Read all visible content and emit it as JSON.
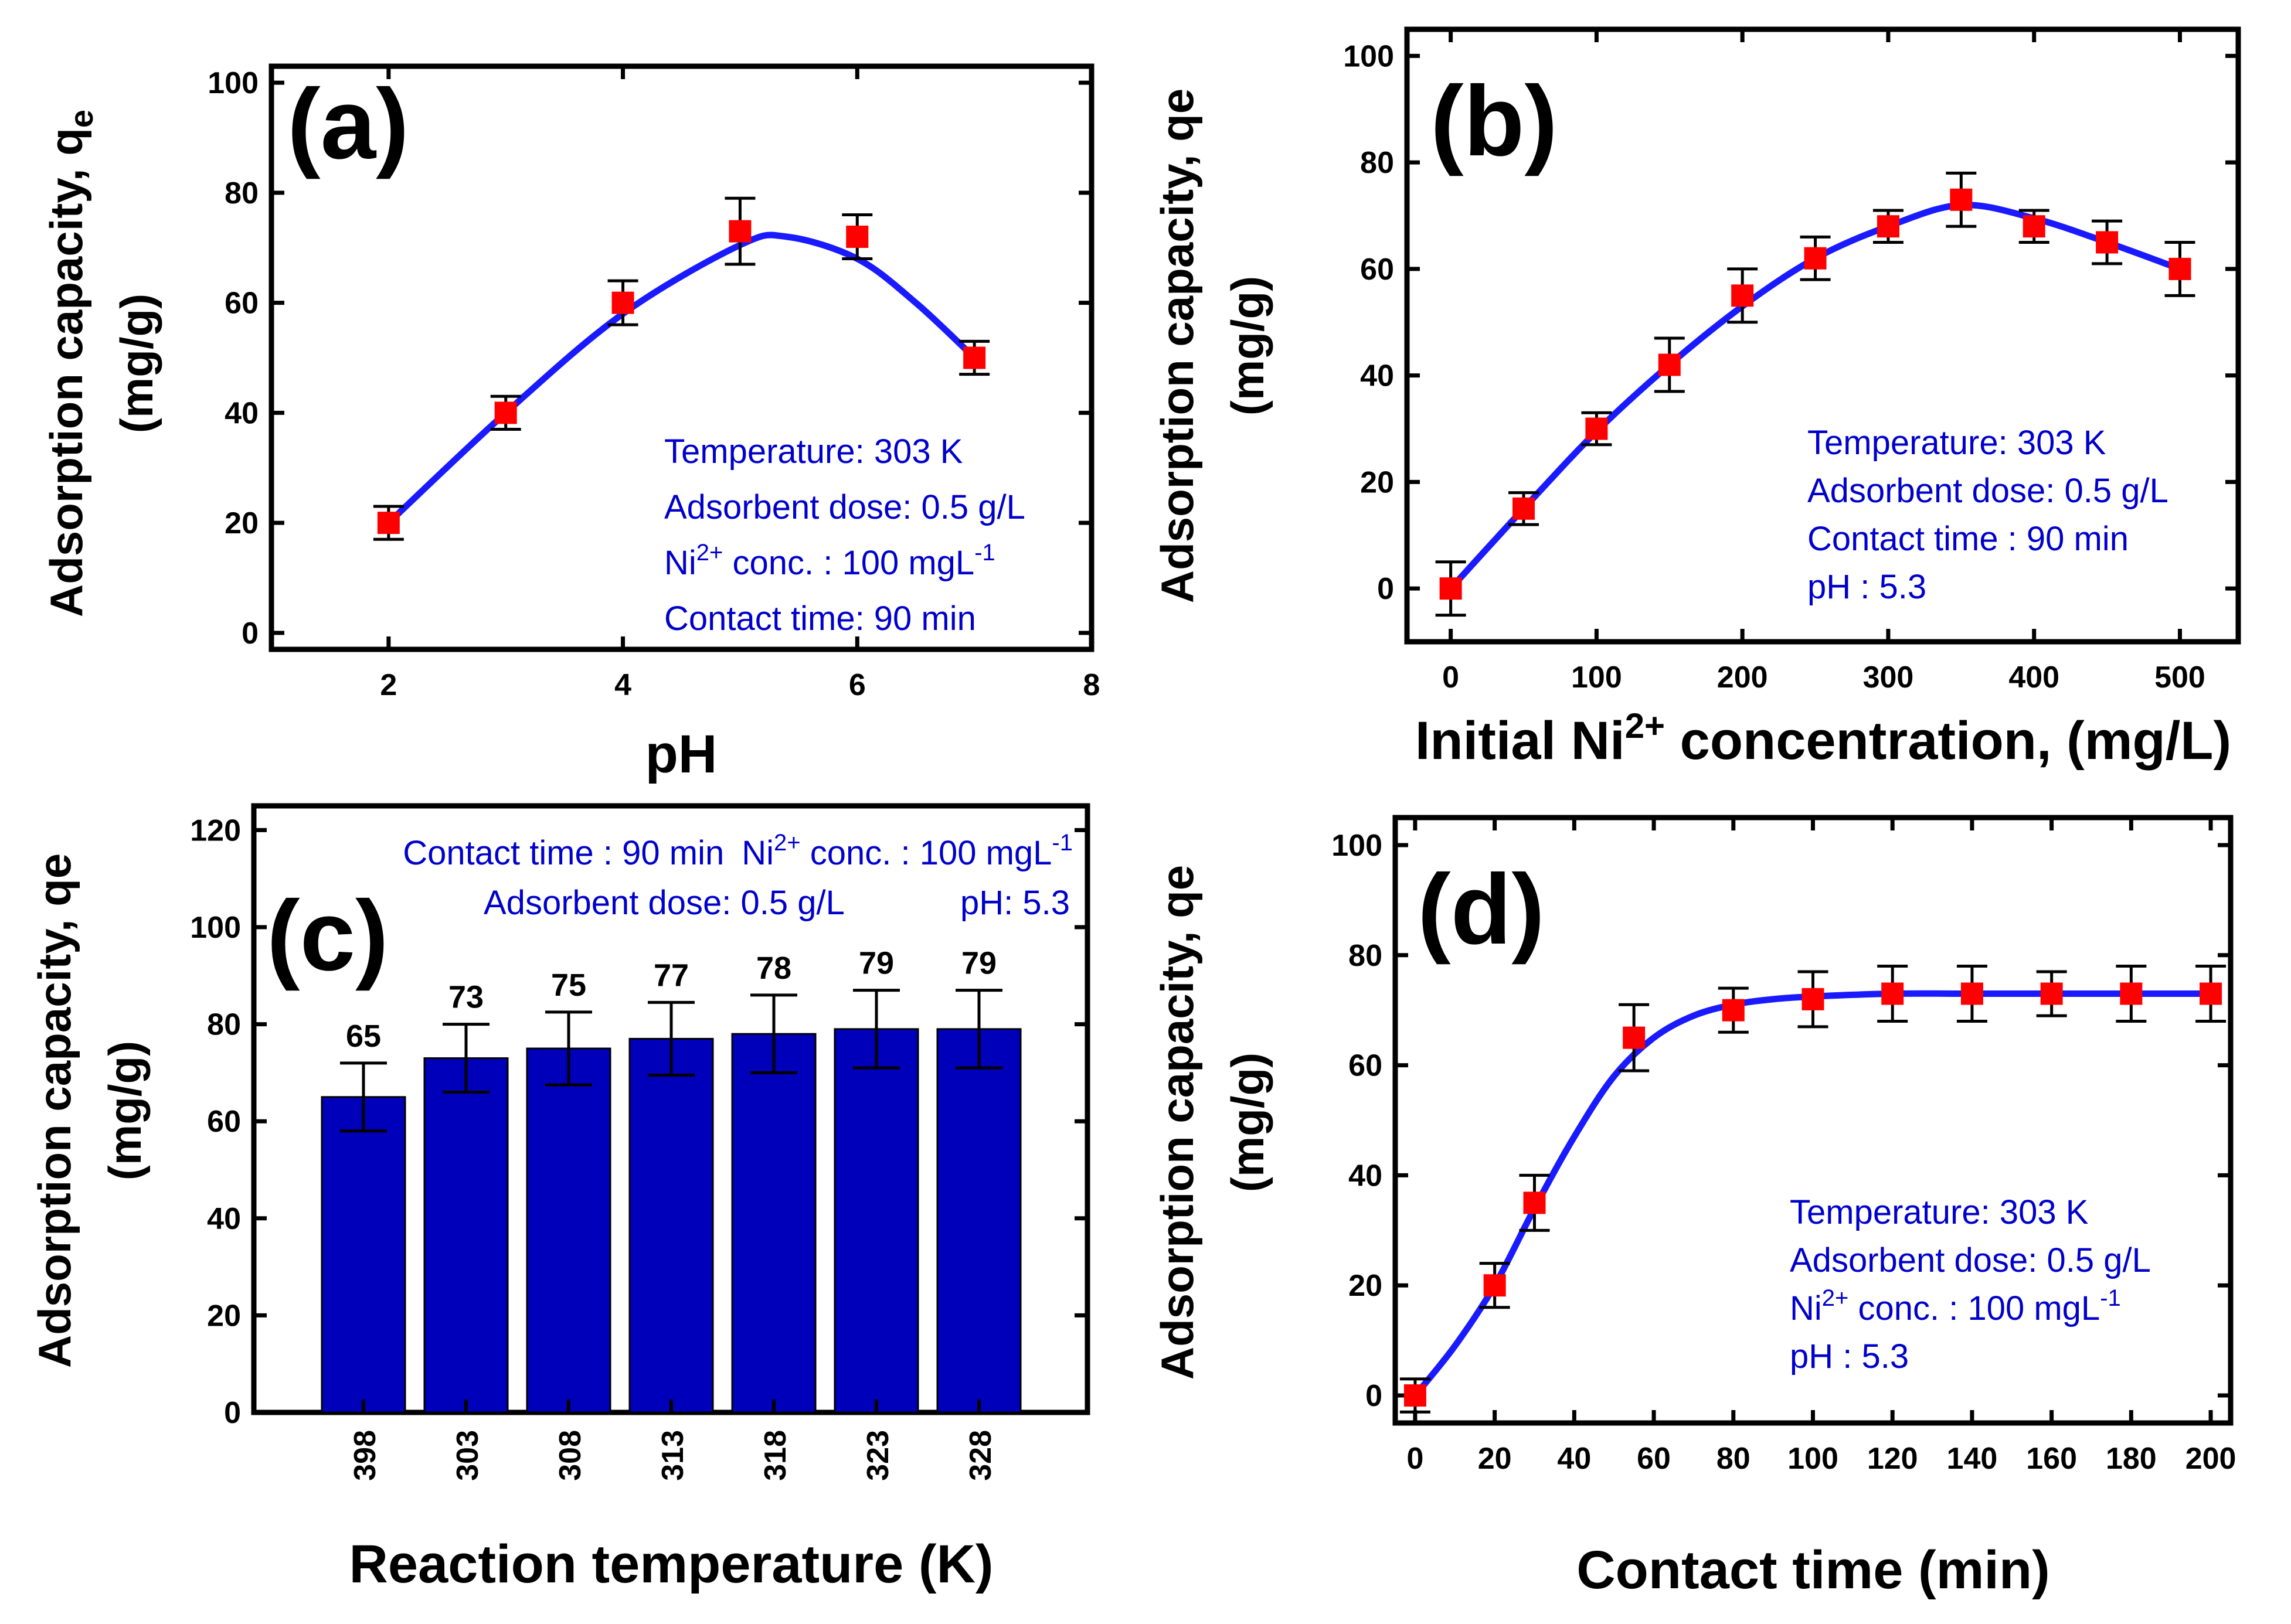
{
  "colors": {
    "fit": "#1a1aff",
    "marker": "#ff0000",
    "bar": "#0000bb",
    "annotation": "#0000cc",
    "axis": "#000000"
  },
  "chart_data": [
    {
      "id": "a",
      "type": "scatter",
      "panel_label": "(a)",
      "xlabel": "pH",
      "ylabel_line1": "Adsorption capacity, q",
      "ylabel_sub": "e",
      "ylabel_line2": "(mg/g)",
      "xlim": [
        1,
        8
      ],
      "ylim": [
        -3,
        103
      ],
      "xticks": [
        2,
        4,
        6,
        8
      ],
      "yticks": [
        0,
        20,
        40,
        60,
        80,
        100
      ],
      "x": [
        2,
        3,
        4,
        5,
        6,
        7
      ],
      "y": [
        20,
        40,
        60,
        73,
        72,
        50
      ],
      "err": [
        3,
        3,
        4,
        6,
        4,
        3
      ],
      "fit": {
        "x": [
          2,
          3,
          4,
          5,
          5.4,
          6,
          6.5,
          7
        ],
        "y": [
          20,
          40,
          58,
          70.5,
          72,
          68,
          60,
          50
        ]
      },
      "annotations": [
        {
          "text": "Temperature: 303 K"
        },
        {
          "text": "Adsorbent dose: 0.5 g/L"
        },
        {
          "pre": "Ni",
          "sup": "2+",
          "post": " conc. : 100 mgL",
          "sup2": "-1"
        },
        {
          "text": "Contact time: 90 min"
        }
      ]
    },
    {
      "id": "b",
      "type": "scatter",
      "panel_label": "(b)",
      "xlabel_pre": "Initial Ni",
      "xlabel_sup": "2+",
      "xlabel_post": " concentration, (mg/L)",
      "ylabel_line1": "Adsorption capacity, qe",
      "ylabel_line2": "(mg/g)",
      "xlim": [
        -30,
        540
      ],
      "ylim": [
        -10,
        105
      ],
      "xticks": [
        0,
        100,
        200,
        300,
        400,
        500
      ],
      "yticks": [
        0,
        20,
        40,
        60,
        80,
        100
      ],
      "x": [
        0,
        50,
        100,
        150,
        200,
        250,
        300,
        350,
        400,
        450,
        500
      ],
      "y": [
        0,
        15,
        30,
        42,
        55,
        62,
        68,
        73,
        68,
        65,
        60
      ],
      "err": [
        5,
        3,
        3,
        5,
        5,
        4,
        3,
        5,
        3,
        4,
        5
      ],
      "fit": {
        "x": [
          0,
          50,
          100,
          150,
          200,
          250,
          300,
          350,
          400,
          450,
          500
        ],
        "y": [
          0,
          15,
          29.5,
          42,
          53,
          62,
          68,
          72,
          69.5,
          65,
          60
        ]
      },
      "annotations": [
        {
          "text": "Temperature: 303 K"
        },
        {
          "text": "Adsorbent dose: 0.5 g/L"
        },
        {
          "text": "Contact time : 90 min"
        },
        {
          "text": "pH : 5.3"
        }
      ]
    },
    {
      "id": "c",
      "type": "bar",
      "panel_label": "(c)",
      "xlabel": "Reaction temperature (K)",
      "ylabel_line1": "Adsorption capacity, qe",
      "ylabel_line2": "(mg/g)",
      "ylim": [
        0,
        125
      ],
      "yticks": [
        0,
        20,
        40,
        60,
        80,
        100,
        120
      ],
      "categories": [
        "398",
        "303",
        "308",
        "313",
        "318",
        "323",
        "328"
      ],
      "values": [
        65,
        73,
        75,
        77,
        78,
        79,
        79
      ],
      "value_labels": [
        "65",
        "73",
        "75",
        "77",
        "78",
        "79",
        "79"
      ],
      "err": [
        7,
        7,
        7.5,
        7.5,
        8,
        8,
        8
      ],
      "annotations": [
        {
          "text": "Contact time : 90 min",
          "pre": "Ni",
          "sup": "2+",
          "post": " conc. : 100 mgL",
          "sup2": "-1"
        },
        {
          "text": "Adsorbent dose: 0.5 g/L",
          "text2": "pH: 5.3"
        }
      ]
    },
    {
      "id": "d",
      "type": "scatter",
      "panel_label": "(d)",
      "xlabel": "Contact time (min)",
      "ylabel_line1": "Adsorption capacity, qe",
      "ylabel_line2": "(mg/g)",
      "xlim": [
        -5,
        205
      ],
      "ylim": [
        -5,
        105
      ],
      "xticks": [
        0,
        20,
        40,
        60,
        80,
        100,
        120,
        140,
        160,
        180,
        200
      ],
      "yticks": [
        0,
        20,
        40,
        60,
        80,
        100
      ],
      "x": [
        0,
        20,
        30,
        55,
        80,
        100,
        120,
        140,
        160,
        180,
        200
      ],
      "y": [
        0,
        20,
        35,
        65,
        70,
        72,
        73,
        73,
        73,
        73,
        73
      ],
      "err": [
        3,
        4,
        5,
        6,
        4,
        5,
        5,
        5,
        4,
        5,
        5
      ],
      "fit": {
        "x": [
          0,
          10,
          20,
          30,
          40,
          50,
          60,
          70,
          80,
          90,
          100,
          120,
          140,
          160,
          180,
          200
        ],
        "y": [
          0,
          9,
          20,
          34,
          47,
          58,
          65,
          69,
          71,
          72,
          72.5,
          73,
          73,
          73,
          73,
          73
        ]
      },
      "annotations": [
        {
          "text": "Temperature: 303 K"
        },
        {
          "text": "Adsorbent dose: 0.5 g/L"
        },
        {
          "pre": "Ni",
          "sup": "2+",
          "post": " conc. : 100 mgL",
          "sup2": "-1"
        },
        {
          "text": "pH : 5.3"
        }
      ]
    }
  ]
}
